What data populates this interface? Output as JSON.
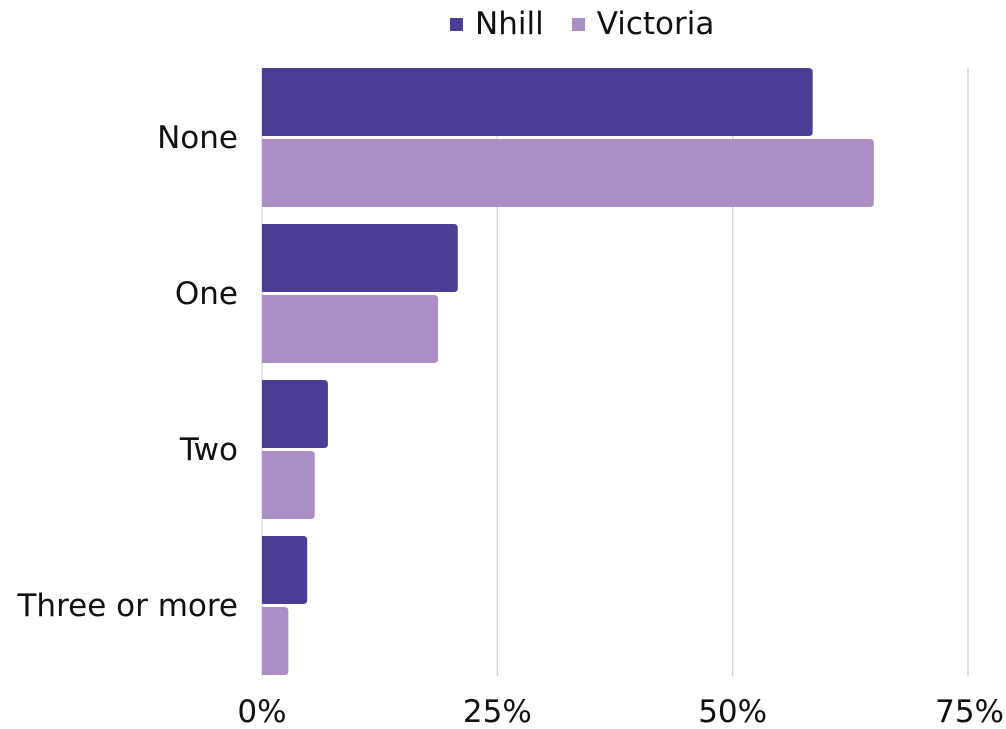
{
  "chart_data": {
    "type": "bar",
    "orientation": "horizontal",
    "title": "",
    "xlabel": "",
    "ylabel": "",
    "categories": [
      "None",
      "One",
      "Two",
      "Three or more"
    ],
    "series": [
      {
        "name": "Nhill",
        "color": "#4b3c96",
        "values": [
          58.5,
          20.8,
          7.0,
          4.8
        ]
      },
      {
        "name": "Victoria",
        "color": "#ab8fc4",
        "values": [
          65.0,
          18.7,
          5.6,
          2.8
        ]
      }
    ],
    "xlim": [
      0,
      75
    ],
    "xticks": [
      0,
      25,
      50,
      75
    ],
    "xtick_labels": [
      "0%",
      "25%",
      "50%",
      "75%"
    ],
    "grid": "vertical",
    "legend_position": "top"
  }
}
